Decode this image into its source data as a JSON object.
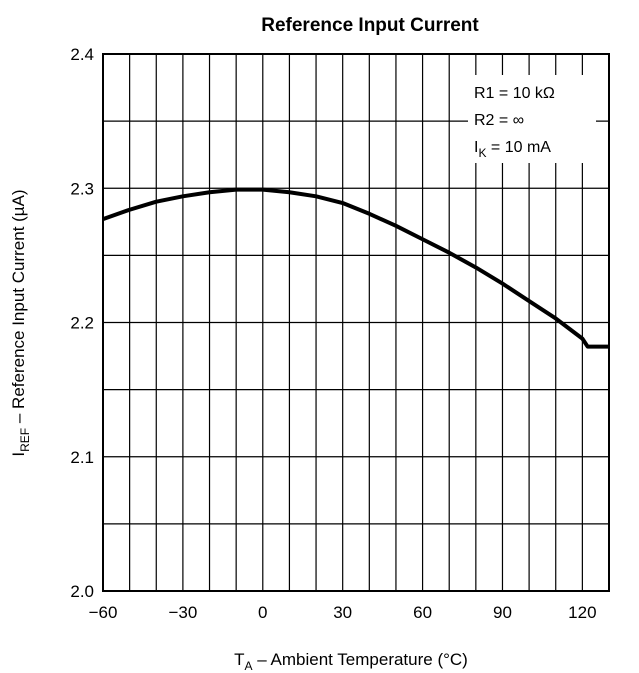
{
  "chart_data": {
    "type": "line",
    "title": "Reference Input Current",
    "xlabel": {
      "main": "T",
      "sub": "A",
      "rest": " – Ambient Temperature (°C)"
    },
    "ylabel": {
      "main": "I",
      "sub": "REF",
      "rest": " – Reference Input Current (µA)"
    },
    "xlim": [
      -60,
      130
    ],
    "ylim": [
      2.0,
      2.4
    ],
    "x_ticks": [
      -60,
      -30,
      0,
      30,
      60,
      90,
      120
    ],
    "x_tick_labels": [
      "−60",
      "−30",
      "0",
      "30",
      "60",
      "90",
      "120"
    ],
    "y_ticks": [
      2.0,
      2.1,
      2.2,
      2.3,
      2.4
    ],
    "y_tick_labels": [
      "2.0",
      "2.1",
      "2.2",
      "2.3",
      "2.4"
    ],
    "grid": true,
    "x_grid_step": 10,
    "y_grid_step": 0.05,
    "annotations": [
      {
        "main": "R1 = 10 kΩ",
        "sub": "",
        "rest": ""
      },
      {
        "main": "R2 = ∞",
        "sub": "",
        "rest": ""
      },
      {
        "main": "I",
        "sub": "K",
        "rest": " = 10 mA"
      }
    ],
    "annotation_placement": "top-right",
    "series": [
      {
        "color": "#000000",
        "x": [
          -60,
          -50,
          -40,
          -30,
          -20,
          -10,
          -3,
          0,
          10,
          20,
          30,
          40,
          50,
          60,
          70,
          80,
          90,
          100,
          110,
          120,
          122,
          130
        ],
        "y": [
          2.277,
          2.284,
          2.29,
          2.294,
          2.297,
          2.299,
          2.299,
          2.299,
          2.297,
          2.294,
          2.289,
          2.281,
          2.272,
          2.262,
          2.252,
          2.241,
          2.229,
          2.216,
          2.203,
          2.188,
          2.182,
          2.182
        ]
      }
    ]
  }
}
